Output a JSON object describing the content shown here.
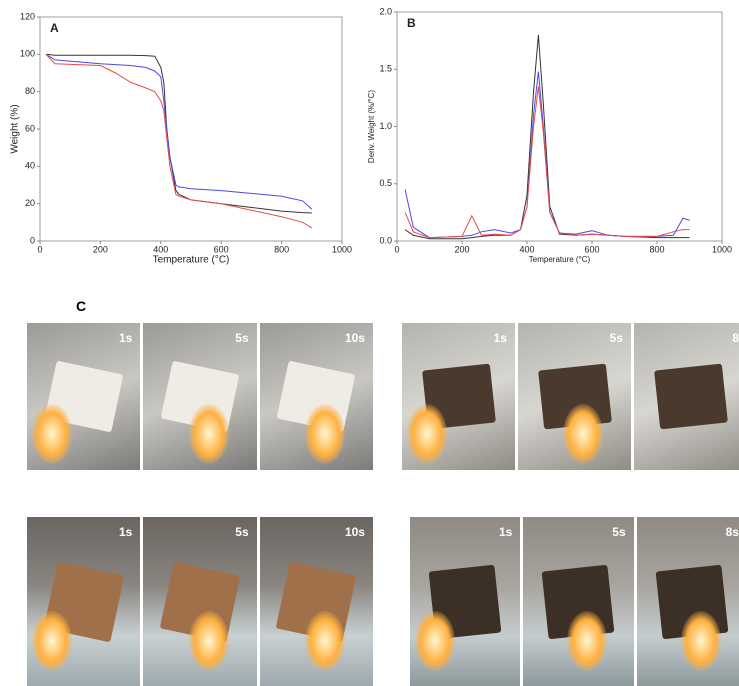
{
  "chart_data": [
    {
      "type": "line",
      "panel": "A",
      "xlabel": "Temperature (°C)",
      "ylabel": "Weight (%)",
      "x": [
        20,
        50,
        200,
        250,
        300,
        350,
        380,
        400,
        410,
        420,
        430,
        450,
        460,
        500,
        600,
        800,
        870,
        900
      ],
      "xlim": [
        0,
        1000
      ],
      "xticks": [
        0,
        200,
        400,
        600,
        800,
        1000
      ],
      "ylim": [
        0,
        120
      ],
      "yticks": [
        0,
        20,
        40,
        60,
        80,
        100,
        120
      ],
      "series": [
        {
          "color": "#333333",
          "values": [
            100,
            99.5,
            99.5,
            99.5,
            99.5,
            99.3,
            99,
            93,
            85,
            60,
            45,
            27,
            25,
            22,
            20,
            16,
            15.2,
            15
          ]
        },
        {
          "color": "#4a4ae8",
          "values": [
            100,
            97,
            95,
            94.5,
            94,
            93,
            91,
            88,
            75,
            60,
            45,
            30,
            29,
            28,
            27,
            24,
            21.5,
            17
          ]
        },
        {
          "color": "#e84a4a",
          "values": [
            100,
            95,
            94,
            90,
            85,
            82,
            80,
            75,
            70,
            55,
            40,
            25,
            24,
            22,
            20,
            13,
            10,
            7
          ]
        }
      ]
    },
    {
      "type": "line",
      "panel": "B",
      "xlabel": "Temperature (°C)",
      "ylabel": "Deriv. Weight (%/°C)",
      "x": [
        25,
        50,
        100,
        200,
        230,
        260,
        300,
        350,
        380,
        400,
        420,
        435,
        450,
        470,
        500,
        550,
        600,
        650,
        700,
        800,
        850,
        880,
        900
      ],
      "xlim": [
        0,
        1000
      ],
      "xticks": [
        0,
        200,
        400,
        600,
        800,
        1000
      ],
      "ylim": [
        0,
        2.0
      ],
      "yticks": [
        {
          "value": 0,
          "label": "0.0"
        },
        0.5,
        {
          "value": 1,
          "label": "1.0"
        },
        1.5,
        {
          "value": 2,
          "label": "2.0"
        }
      ],
      "series": [
        {
          "color": "#333333",
          "values": [
            0.1,
            0.05,
            0.02,
            0.02,
            0.03,
            0.04,
            0.05,
            0.05,
            0.1,
            0.4,
            1.3,
            1.8,
            1.2,
            0.3,
            0.06,
            0.05,
            0.06,
            0.05,
            0.04,
            0.03,
            0.03,
            0.03,
            0.03
          ]
        },
        {
          "color": "#4a4ae8",
          "values": [
            0.45,
            0.12,
            0.03,
            0.04,
            0.05,
            0.08,
            0.1,
            0.07,
            0.1,
            0.3,
            1.1,
            1.48,
            1.0,
            0.25,
            0.07,
            0.06,
            0.09,
            0.05,
            0.04,
            0.04,
            0.05,
            0.2,
            0.18
          ]
        },
        {
          "color": "#e84a4a",
          "values": [
            0.25,
            0.08,
            0.03,
            0.04,
            0.22,
            0.05,
            0.06,
            0.05,
            0.1,
            0.3,
            1.0,
            1.35,
            0.95,
            0.25,
            0.07,
            0.05,
            0.06,
            0.05,
            0.04,
            0.04,
            0.08,
            0.1,
            0.1
          ]
        }
      ]
    }
  ],
  "photos": {
    "label": "C",
    "groups": [
      {
        "times": [
          "1s",
          "5s",
          "10s"
        ]
      },
      {
        "times": [
          "1s",
          "5s",
          "8"
        ]
      },
      {
        "times": [
          "1s",
          "5s",
          "10s"
        ]
      },
      {
        "times": [
          "1s",
          "5s",
          "8s"
        ]
      }
    ]
  }
}
